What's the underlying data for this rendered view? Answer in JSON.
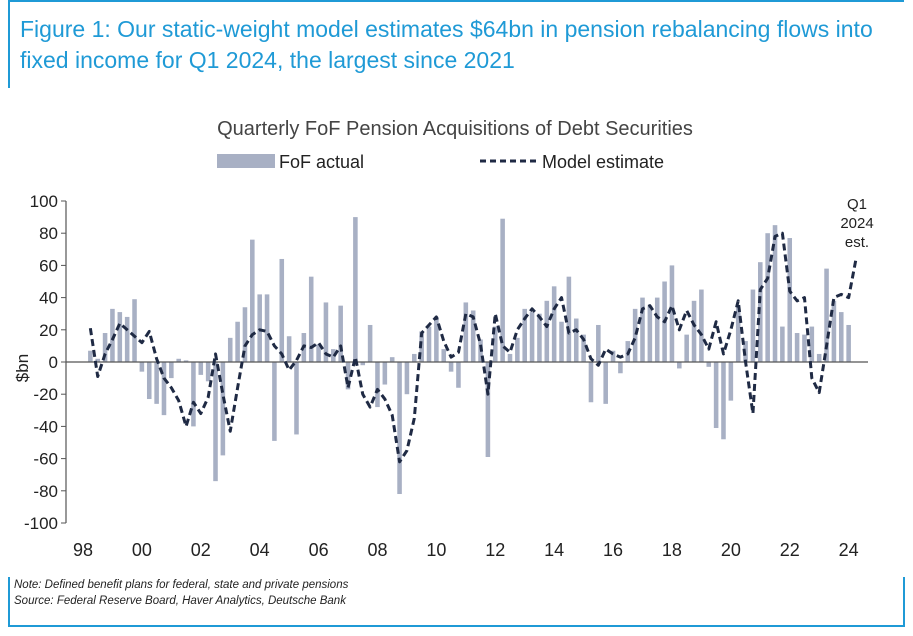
{
  "figure": {
    "title": "Figure 1: Our static-weight model estimates $64bn in pension rebalancing flows into fixed income for Q1 2024, the largest since 2021",
    "note": "Note: Defined benefit plans for federal, state and private pensions",
    "source": "Source: Federal Reserve Board, Haver Analytics, Deutsche Bank"
  },
  "chart_data": {
    "type": "bar",
    "title": "Quarterly FoF Pension Acquisitions of Debt Securities",
    "ylabel": "$bn",
    "xlabel": "",
    "ylim": [
      -100,
      100
    ],
    "yticks": [
      100,
      80,
      60,
      40,
      20,
      0,
      -20,
      -40,
      -60,
      -80,
      -100
    ],
    "xticks": [
      "98",
      "00",
      "02",
      "04",
      "06",
      "08",
      "10",
      "12",
      "14",
      "16",
      "18",
      "20",
      "22",
      "24"
    ],
    "xrange": [
      1998.0,
      2024.25
    ],
    "grid": false,
    "legend_position": "top",
    "annotation": {
      "lines": [
        "Q1",
        "2024",
        "est."
      ]
    },
    "colors": {
      "bar": "#a8b0c4",
      "line": "#1f2a44"
    },
    "series": [
      {
        "name": "FoF actual",
        "type": "bar",
        "x_start": 1998.25,
        "step": 0.25,
        "values": [
          7,
          2,
          18,
          33,
          31,
          28,
          39,
          -6,
          -23,
          -26,
          -33,
          -10,
          2,
          1,
          -40,
          -8,
          -12,
          -74,
          -58,
          15,
          25,
          34,
          76,
          42,
          42,
          -49,
          64,
          16,
          -45,
          18,
          53,
          11,
          37,
          8,
          35,
          -17,
          90,
          -2,
          23,
          -28,
          -14,
          3,
          -82,
          -20,
          5,
          19,
          22,
          28,
          8,
          -6,
          -16,
          37,
          32,
          14,
          -59,
          22,
          89,
          5,
          15,
          33,
          31,
          30,
          38,
          47,
          25,
          53,
          27,
          17,
          -25,
          23,
          -26,
          7,
          -7,
          13,
          33,
          40,
          35,
          40,
          50,
          60,
          -4,
          17,
          38,
          45,
          -3,
          -41,
          -48,
          -24,
          34,
          13,
          45,
          62,
          80,
          85,
          22,
          77,
          18,
          17,
          22,
          5,
          58,
          38,
          31,
          23
        ]
      },
      {
        "name": "Model estimate",
        "type": "line",
        "x_start": 1998.25,
        "step": 0.25,
        "values": [
          21,
          -9,
          5,
          14,
          24,
          20,
          16,
          12,
          19,
          2,
          -10,
          -16,
          -24,
          -40,
          -25,
          -32,
          -22,
          5,
          -20,
          -43,
          -16,
          10,
          17,
          20,
          19,
          10,
          5,
          -5,
          1,
          10,
          9,
          12,
          5,
          3,
          10,
          -16,
          3,
          -20,
          -28,
          -17,
          -23,
          -33,
          -62,
          -55,
          -35,
          18,
          23,
          28,
          13,
          3,
          6,
          30,
          28,
          11,
          -20,
          30,
          10,
          6,
          20,
          27,
          33,
          28,
          22,
          33,
          40,
          18,
          20,
          14,
          2,
          -2,
          8,
          5,
          3,
          5,
          15,
          33,
          35,
          28,
          25,
          35,
          20,
          32,
          23,
          17,
          8,
          25,
          5,
          20,
          38,
          0,
          -32,
          45,
          52,
          78,
          80,
          44,
          38,
          40,
          -10,
          -19,
          10,
          40,
          42,
          40,
          64
        ]
      }
    ]
  }
}
